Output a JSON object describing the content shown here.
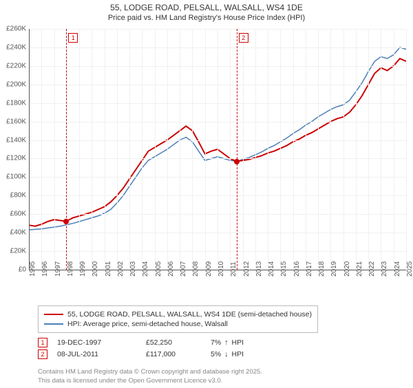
{
  "title": "55, LODGE ROAD, PELSALL, WALSALL, WS4 1DE",
  "subtitle": "Price paid vs. HM Land Registry's House Price Index (HPI)",
  "chart": {
    "type": "line",
    "background_color": "#ffffff",
    "grid_color": "#f0f0f0",
    "axis_color": "#555555",
    "label_fontsize": 10,
    "ylim": [
      0,
      260000
    ],
    "ytick_step": 20000,
    "y_labels": [
      "£0",
      "£20K",
      "£40K",
      "£60K",
      "£80K",
      "£100K",
      "£120K",
      "£140K",
      "£160K",
      "£180K",
      "£200K",
      "£220K",
      "£240K",
      "£260K"
    ],
    "xlim": [
      1995,
      2025
    ],
    "x_labels": [
      "1995",
      "1996",
      "1997",
      "1998",
      "1999",
      "2000",
      "2001",
      "2002",
      "2003",
      "2004",
      "2005",
      "2006",
      "2007",
      "2008",
      "2009",
      "2010",
      "2011",
      "2012",
      "2013",
      "2014",
      "2015",
      "2016",
      "2017",
      "2018",
      "2019",
      "2020",
      "2021",
      "2022",
      "2023",
      "2024",
      "2025"
    ],
    "series": [
      {
        "name": "55, LODGE ROAD, PELSALL, WALSALL, WS4 1DE (semi-detached house)",
        "color": "#cc0000",
        "line_width": 2,
        "data": [
          [
            1995,
            48000
          ],
          [
            1995.5,
            47000
          ],
          [
            1996,
            49000
          ],
          [
            1996.5,
            52000
          ],
          [
            1997,
            54000
          ],
          [
            1997.97,
            52250
          ],
          [
            1998.5,
            56000
          ],
          [
            1999,
            58000
          ],
          [
            1999.5,
            60000
          ],
          [
            2000,
            62000
          ],
          [
            2000.5,
            65000
          ],
          [
            2001,
            68000
          ],
          [
            2001.5,
            73000
          ],
          [
            2002,
            80000
          ],
          [
            2002.5,
            88000
          ],
          [
            2003,
            98000
          ],
          [
            2003.5,
            108000
          ],
          [
            2004,
            118000
          ],
          [
            2004.5,
            128000
          ],
          [
            2005,
            132000
          ],
          [
            2005.5,
            136000
          ],
          [
            2006,
            140000
          ],
          [
            2006.5,
            145000
          ],
          [
            2007,
            150000
          ],
          [
            2007.5,
            155000
          ],
          [
            2008,
            150000
          ],
          [
            2008.5,
            138000
          ],
          [
            2009,
            125000
          ],
          [
            2009.5,
            128000
          ],
          [
            2010,
            130000
          ],
          [
            2010.5,
            125000
          ],
          [
            2011,
            120000
          ],
          [
            2011.52,
            117000
          ],
          [
            2012,
            118000
          ],
          [
            2012.5,
            119000
          ],
          [
            2013,
            121000
          ],
          [
            2013.5,
            123000
          ],
          [
            2014,
            126000
          ],
          [
            2014.5,
            128000
          ],
          [
            2015,
            131000
          ],
          [
            2015.5,
            134000
          ],
          [
            2016,
            138000
          ],
          [
            2016.5,
            141000
          ],
          [
            2017,
            145000
          ],
          [
            2017.5,
            148000
          ],
          [
            2018,
            152000
          ],
          [
            2018.5,
            156000
          ],
          [
            2019,
            160000
          ],
          [
            2019.5,
            163000
          ],
          [
            2020,
            165000
          ],
          [
            2020.5,
            170000
          ],
          [
            2021,
            178000
          ],
          [
            2021.5,
            188000
          ],
          [
            2022,
            200000
          ],
          [
            2022.5,
            212000
          ],
          [
            2023,
            218000
          ],
          [
            2023.5,
            215000
          ],
          [
            2024,
            220000
          ],
          [
            2024.5,
            228000
          ],
          [
            2025,
            225000
          ]
        ]
      },
      {
        "name": "HPI: Average price, semi-detached house, Walsall",
        "color": "#4a7fb8",
        "line_width": 1.5,
        "data": [
          [
            1995,
            43000
          ],
          [
            1995.5,
            43500
          ],
          [
            1996,
            44000
          ],
          [
            1996.5,
            45000
          ],
          [
            1997,
            46000
          ],
          [
            1997.5,
            47000
          ],
          [
            1998,
            48500
          ],
          [
            1998.5,
            50000
          ],
          [
            1999,
            52000
          ],
          [
            1999.5,
            54000
          ],
          [
            2000,
            56000
          ],
          [
            2000.5,
            58000
          ],
          [
            2001,
            61000
          ],
          [
            2001.5,
            65000
          ],
          [
            2002,
            72000
          ],
          [
            2002.5,
            80000
          ],
          [
            2003,
            90000
          ],
          [
            2003.5,
            100000
          ],
          [
            2004,
            110000
          ],
          [
            2004.5,
            118000
          ],
          [
            2005,
            122000
          ],
          [
            2005.5,
            126000
          ],
          [
            2006,
            130000
          ],
          [
            2006.5,
            135000
          ],
          [
            2007,
            140000
          ],
          [
            2007.5,
            143000
          ],
          [
            2008,
            138000
          ],
          [
            2008.5,
            128000
          ],
          [
            2009,
            118000
          ],
          [
            2009.5,
            120000
          ],
          [
            2010,
            122000
          ],
          [
            2010.5,
            120000
          ],
          [
            2011,
            118000
          ],
          [
            2011.52,
            117000
          ],
          [
            2012,
            119000
          ],
          [
            2012.5,
            121000
          ],
          [
            2013,
            124000
          ],
          [
            2013.5,
            127000
          ],
          [
            2014,
            131000
          ],
          [
            2014.5,
            134000
          ],
          [
            2015,
            138000
          ],
          [
            2015.5,
            142000
          ],
          [
            2016,
            147000
          ],
          [
            2016.5,
            151000
          ],
          [
            2017,
            156000
          ],
          [
            2017.5,
            160000
          ],
          [
            2018,
            165000
          ],
          [
            2018.5,
            169000
          ],
          [
            2019,
            173000
          ],
          [
            2019.5,
            176000
          ],
          [
            2020,
            178000
          ],
          [
            2020.5,
            183000
          ],
          [
            2021,
            192000
          ],
          [
            2021.5,
            202000
          ],
          [
            2022,
            214000
          ],
          [
            2022.5,
            225000
          ],
          [
            2023,
            230000
          ],
          [
            2023.5,
            228000
          ],
          [
            2024,
            232000
          ],
          [
            2024.5,
            240000
          ],
          [
            2025,
            238000
          ]
        ]
      }
    ],
    "markers": [
      {
        "n": "1",
        "x": 1997.97,
        "color": "#cc0000"
      },
      {
        "n": "2",
        "x": 2011.52,
        "color": "#cc0000"
      }
    ],
    "sale_points": [
      {
        "x": 1997.97,
        "y": 52250,
        "color": "#cc0000"
      },
      {
        "x": 2011.52,
        "y": 117000,
        "color": "#cc0000"
      }
    ]
  },
  "legend": {
    "items": [
      {
        "color": "#cc0000",
        "label": "55, LODGE ROAD, PELSALL, WALSALL, WS4 1DE (semi-detached house)"
      },
      {
        "color": "#4a7fb8",
        "label": "HPI: Average price, semi-detached house, Walsall"
      }
    ]
  },
  "sales": [
    {
      "n": "1",
      "date": "19-DEC-1997",
      "price": "£52,250",
      "hpi_pct": "7%",
      "hpi_dir": "↑",
      "hpi_label": "HPI",
      "color": "#cc0000"
    },
    {
      "n": "2",
      "date": "08-JUL-2011",
      "price": "£117,000",
      "hpi_pct": "5%",
      "hpi_dir": "↓",
      "hpi_label": "HPI",
      "color": "#cc0000"
    }
  ],
  "footer": {
    "line1": "Contains HM Land Registry data © Crown copyright and database right 2025.",
    "line2": "This data is licensed under the Open Government Licence v3.0."
  }
}
